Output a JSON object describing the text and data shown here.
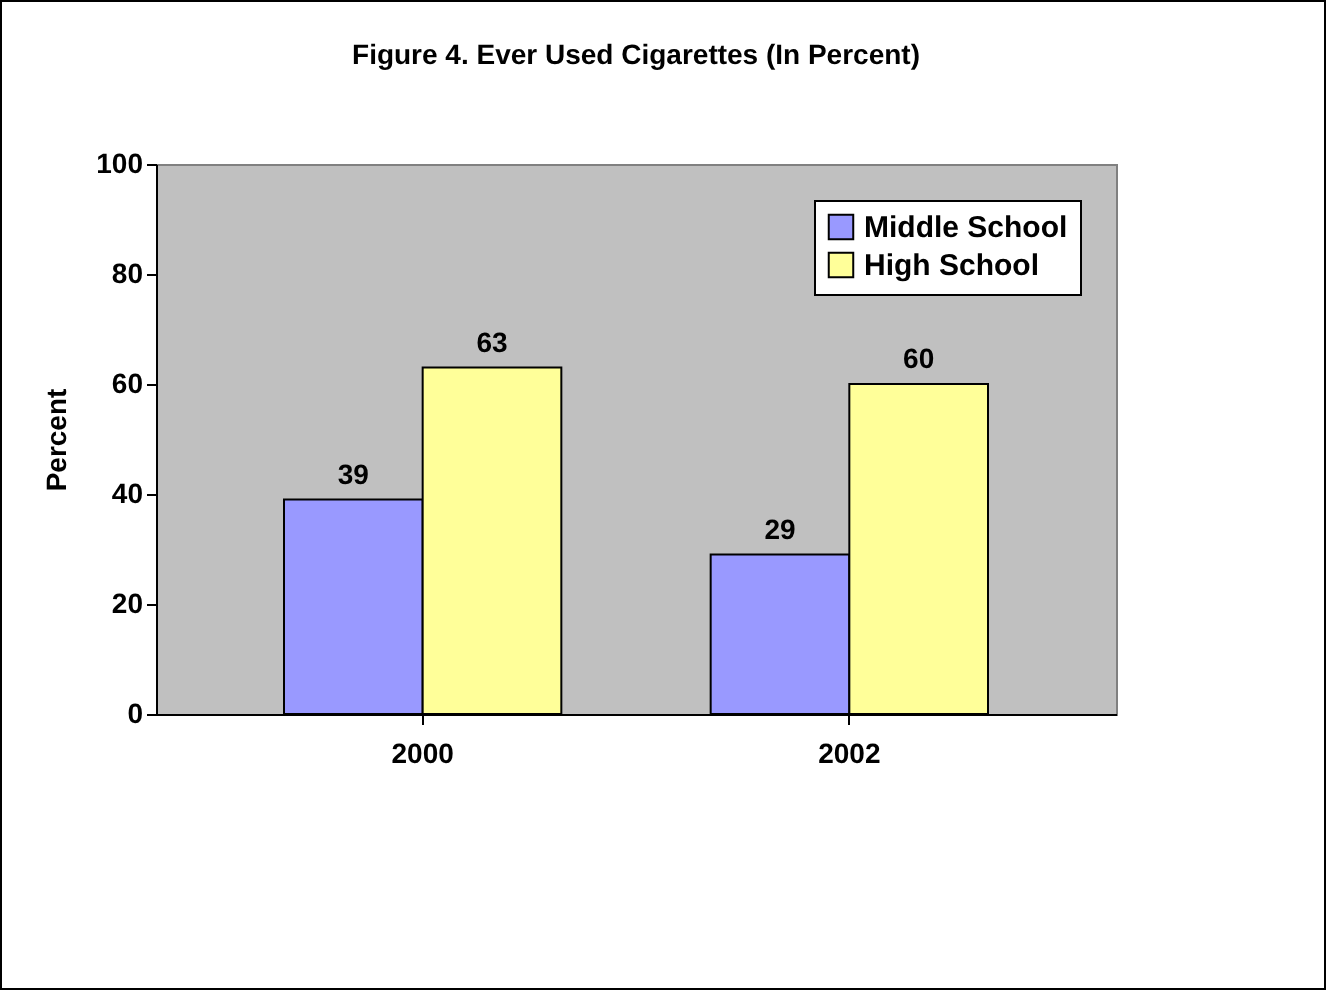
{
  "chart_data": {
    "type": "bar",
    "title": "Figure 4. Ever Used Cigarettes (In Percent)",
    "ylabel": "Percent",
    "categories": [
      "2000",
      "2002"
    ],
    "series": [
      {
        "name": "Middle School",
        "color": "#9999ff",
        "values": [
          39,
          29
        ]
      },
      {
        "name": "High School",
        "color": "#ffff99",
        "values": [
          63,
          60
        ]
      }
    ],
    "ylim": [
      0,
      100
    ],
    "yticks": [
      0,
      20,
      40,
      60,
      80,
      100
    ],
    "data_labels": true,
    "legend": "top right",
    "grid": false
  }
}
